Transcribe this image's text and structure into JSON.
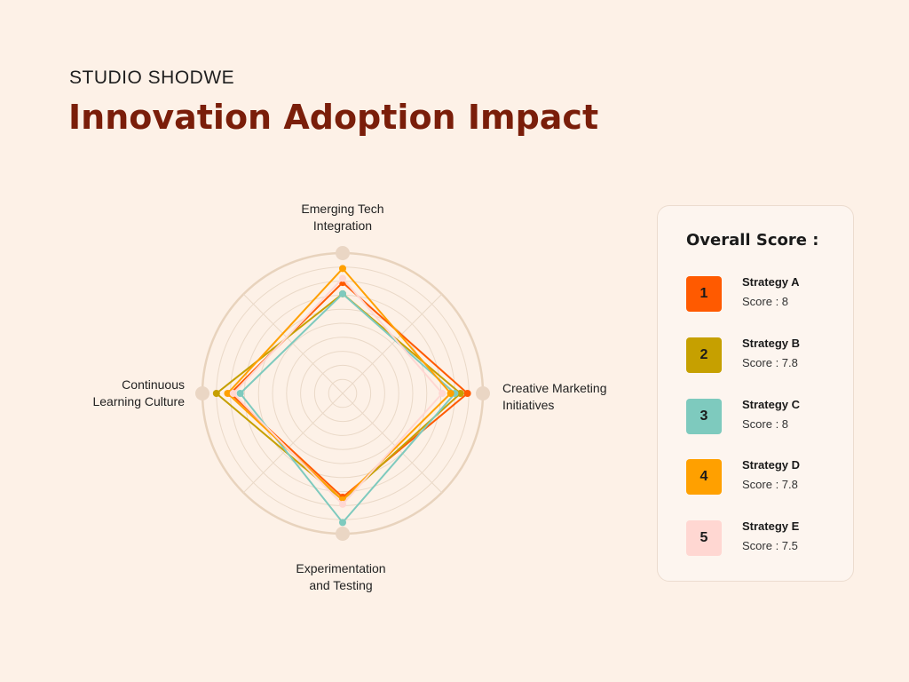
{
  "header": {
    "brand": "STUDIO SHODWE",
    "title": "Innovation Adoption Impact"
  },
  "chart_data": {
    "type": "radar",
    "title": "Innovation Adoption Impact",
    "axes": [
      "Emerging Tech Integration",
      "Creative Marketing Initiatives",
      "Experimentation and Testing",
      "Continuous Learning Culture"
    ],
    "axis_labels_display": {
      "top": [
        "Emerging Tech",
        "Integration"
      ],
      "right": [
        "Creative Marketing",
        "Initiatives"
      ],
      "bottom": [
        "Experimentation",
        "and Testing"
      ],
      "left": [
        "Continuous",
        "Learning Culture"
      ]
    },
    "range": [
      0,
      10
    ],
    "rings": 10,
    "series": [
      {
        "name": "Strategy A",
        "color": "#ff5a00",
        "values": [
          7.9,
          8.9,
          7.4,
          8.0
        ]
      },
      {
        "name": "Strategy B",
        "color": "#c6a000",
        "values": [
          7.1,
          8.4,
          7.6,
          9.0
        ]
      },
      {
        "name": "Strategy C",
        "color": "#7ecabe",
        "values": [
          7.1,
          8.0,
          9.2,
          7.3
        ]
      },
      {
        "name": "Strategy D",
        "color": "#ffa000",
        "values": [
          8.9,
          7.7,
          7.6,
          8.2
        ]
      },
      {
        "name": "Strategy E",
        "color": "#ffd7d2",
        "values": [
          8.2,
          7.1,
          7.9,
          7.8
        ]
      }
    ]
  },
  "legend": {
    "title": "Overall Score :",
    "items": [
      {
        "num": "1",
        "name": "Strategy A",
        "score": "Score : 8",
        "color": "#ff5a00"
      },
      {
        "num": "2",
        "name": "Strategy B",
        "score": "Score : 7.8",
        "color": "#c6a000"
      },
      {
        "num": "3",
        "name": "Strategy C",
        "score": "Score : 8",
        "color": "#7ecabe"
      },
      {
        "num": "4",
        "name": "Strategy D",
        "score": "Score : 7.8",
        "color": "#ffa000"
      },
      {
        "num": "5",
        "name": "Strategy E",
        "score": "Score : 7.5",
        "color": "#ffd7d2"
      }
    ]
  }
}
